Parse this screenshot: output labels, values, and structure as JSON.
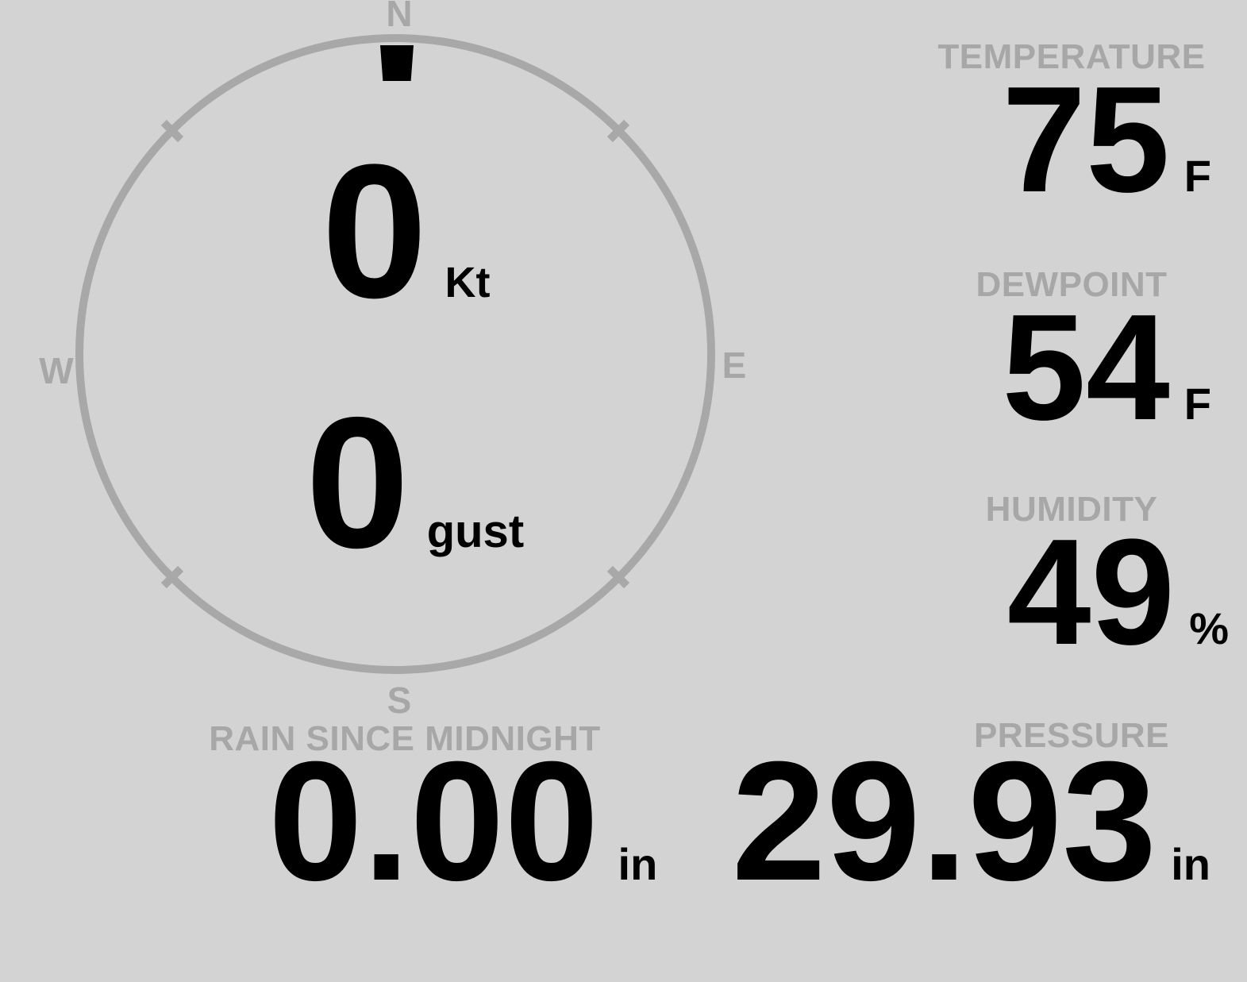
{
  "colors": {
    "background": "#d3d3d3",
    "muted_gray": "#a7a7a7",
    "dial_stroke": "#a8a8a8",
    "value_text": "#000000"
  },
  "compass": {
    "north_label": "N",
    "east_label": "E",
    "south_label": "S",
    "west_label": "W",
    "direction_pointer": "N",
    "speed": {
      "value": "0",
      "unit": "Kt"
    },
    "gust": {
      "value": "0",
      "unit": "gust"
    }
  },
  "metrics": {
    "temperature": {
      "label": "TEMPERATURE",
      "value": "75",
      "unit": "F"
    },
    "dewpoint": {
      "label": "DEWPOINT",
      "value": "54",
      "unit": "F"
    },
    "humidity": {
      "label": "HUMIDITY",
      "value": "49",
      "unit": "%"
    },
    "rain_since_midnight": {
      "label": "RAIN SINCE MIDNIGHT",
      "value": "0.00",
      "unit": "in"
    },
    "pressure": {
      "label": "PRESSURE",
      "value": "29.93",
      "unit": "in"
    }
  }
}
